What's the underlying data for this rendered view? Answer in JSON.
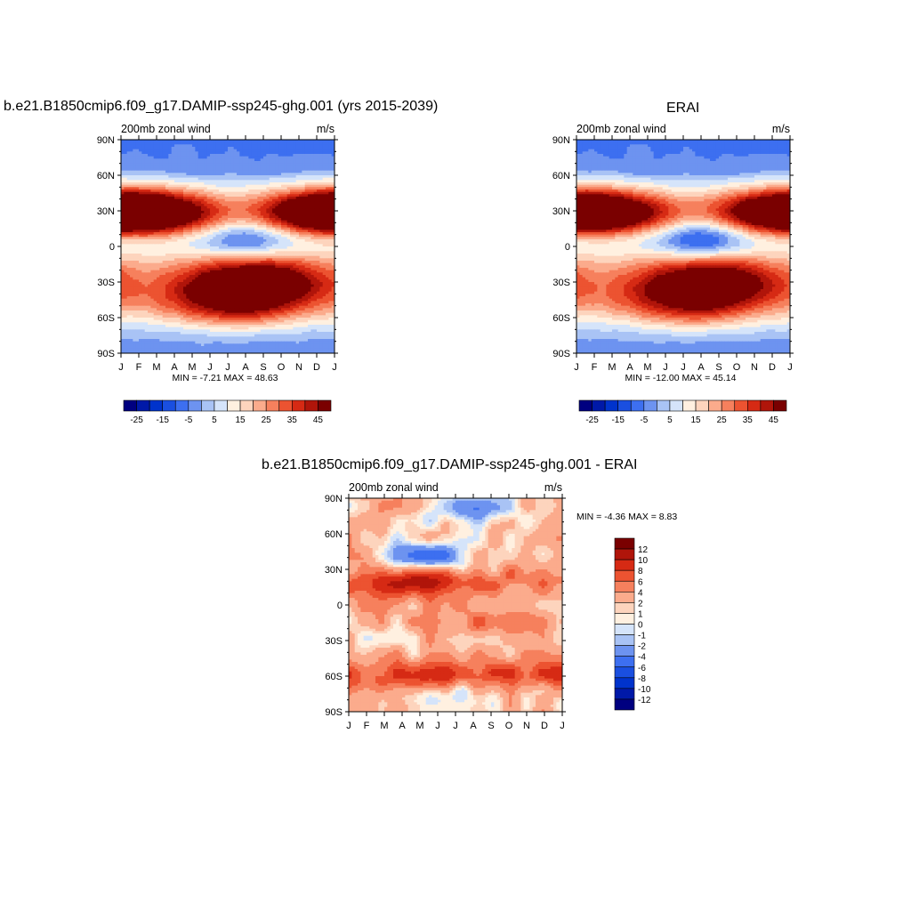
{
  "page": {
    "panel_a_title": "b.e21.B1850cmip6.f09_g17.DAMIP-ssp245-ghg.001 (yrs 2015-2039)",
    "panel_b_title": "ERAI",
    "panel_c_title": "b.e21.B1850cmip6.f09_g17.DAMIP-ssp245-ghg.001 - ERAI"
  },
  "chart_data": [
    {
      "type": "heatmap",
      "id": "model",
      "title": "b.e21.B1850cmip6.f09_g17.DAMIP-ssp245-ghg.001 (yrs 2015-2039)",
      "left_label": "200mb zonal wind",
      "right_label": "m/s",
      "x_ticks": [
        "J",
        "F",
        "M",
        "A",
        "M",
        "J",
        "J",
        "A",
        "S",
        "O",
        "N",
        "D",
        "J"
      ],
      "y_ticks": [
        "90N",
        "60N",
        "30N",
        "0",
        "30S",
        "60S",
        "90S"
      ],
      "ylim": [
        -90,
        90
      ],
      "stats": "MIN =  -7.21 MAX =  48.63",
      "min": -7.21,
      "max": 48.63,
      "levels": [
        -25,
        -20,
        -15,
        -10,
        -5,
        0,
        5,
        10,
        15,
        20,
        25,
        30,
        35,
        40,
        45
      ],
      "colorbar_labels": [
        "-25",
        "-15",
        "-5",
        "5",
        "15",
        "25",
        "35",
        "45"
      ],
      "features": [
        {
          "lat": 28,
          "month": 1.0,
          "peak": 48
        },
        {
          "lat": 30,
          "month": 12.0,
          "peak": 40
        },
        {
          "lat": 8,
          "month": 7.0,
          "peak": -7
        },
        {
          "lat": -28,
          "month": 7.5,
          "peak": 46
        },
        {
          "lat": -50,
          "month": 6.5,
          "peak": 36
        }
      ]
    },
    {
      "type": "heatmap",
      "id": "erai",
      "title": "ERAI",
      "left_label": "200mb zonal wind",
      "right_label": "m/s",
      "x_ticks": [
        "J",
        "F",
        "M",
        "A",
        "M",
        "J",
        "J",
        "A",
        "S",
        "O",
        "N",
        "D",
        "J"
      ],
      "y_ticks": [
        "90N",
        "60N",
        "30N",
        "0",
        "30S",
        "60S",
        "90S"
      ],
      "ylim": [
        -90,
        90
      ],
      "stats": "MIN = -12.00 MAX =  45.14",
      "min": -12.0,
      "max": 45.14,
      "levels": [
        -25,
        -20,
        -15,
        -10,
        -5,
        0,
        5,
        10,
        15,
        20,
        25,
        30,
        35,
        40,
        45
      ],
      "colorbar_labels": [
        "-25",
        "-15",
        "-5",
        "5",
        "15",
        "25",
        "35",
        "45"
      ],
      "features": [
        {
          "lat": 28,
          "month": 1.0,
          "peak": 40
        },
        {
          "lat": 30,
          "month": 12.0,
          "peak": 40
        },
        {
          "lat": 8,
          "month": 7.0,
          "peak": -12
        },
        {
          "lat": -28,
          "month": 7.5,
          "peak": 42
        },
        {
          "lat": -50,
          "month": 6.5,
          "peak": 32
        }
      ]
    },
    {
      "type": "heatmap",
      "id": "diff",
      "title": "b.e21.B1850cmip6.f09_g17.DAMIP-ssp245-ghg.001 - ERAI",
      "left_label": "200mb zonal wind",
      "right_label": "m/s",
      "x_ticks": [
        "J",
        "F",
        "M",
        "A",
        "M",
        "J",
        "J",
        "A",
        "S",
        "O",
        "N",
        "D",
        "J"
      ],
      "y_ticks": [
        "90N",
        "60N",
        "30N",
        "0",
        "30S",
        "60S",
        "90S"
      ],
      "ylim": [
        -90,
        90
      ],
      "stats": "MIN =  -4.36 MAX =   8.83",
      "min": -4.36,
      "max": 8.83,
      "levels": [
        -12,
        -10,
        -8,
        -6,
        -4,
        -2,
        -1,
        0,
        1,
        2,
        4,
        6,
        8,
        10,
        12
      ],
      "colorbar_labels": [
        "12",
        "10",
        "8",
        "6",
        "4",
        "2",
        "1",
        "0",
        "-1",
        "-2",
        "-4",
        "-6",
        "-8",
        "-10",
        "-12"
      ],
      "features": [
        {
          "lat": 20,
          "month": 4.0,
          "peak": 8.8
        },
        {
          "lat": -60,
          "month": 4.5,
          "peak": 7
        },
        {
          "lat": -60,
          "month": 11.0,
          "peak": 6
        },
        {
          "lat": -15,
          "month": 7.5,
          "peak": 5
        },
        {
          "lat": 40,
          "month": 4.5,
          "peak": -4.3
        },
        {
          "lat": 80,
          "month": 7.0,
          "peak": -2
        },
        {
          "lat": -80,
          "month": 5.0,
          "peak": -2.5
        }
      ]
    }
  ],
  "palette": {
    "colors": [
      "#000080",
      "#0019a8",
      "#0033cc",
      "#1a4fe0",
      "#3d6ff0",
      "#6d93f0",
      "#a9c3f5",
      "#d5e4fa",
      "#fff0e0",
      "#fdd4bd",
      "#fbab8c",
      "#f6805d",
      "#ec5331",
      "#d62a14",
      "#b0150a",
      "#7a0000"
    ]
  }
}
